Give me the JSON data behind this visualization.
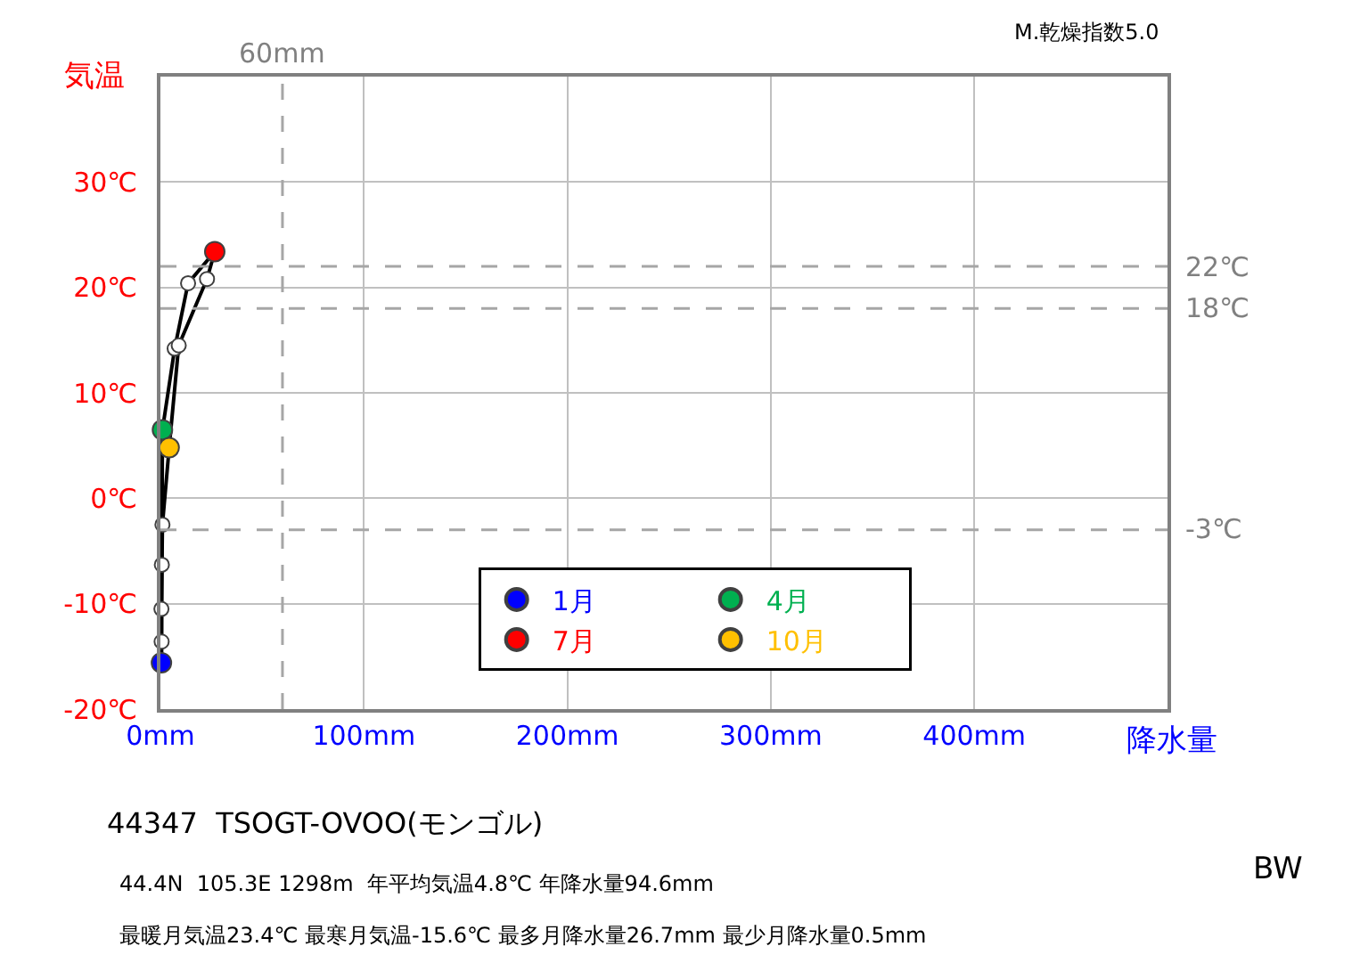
{
  "chart_data": {
    "type": "line",
    "title": "44347  TSOGT-OVOO(モンゴル)",
    "xlabel": "降水量",
    "ylabel": "気温",
    "xlim": [
      0,
      495
    ],
    "xticks": [
      {
        "value": 0,
        "label": "0mm"
      },
      {
        "value": 100,
        "label": "100mm"
      },
      {
        "value": 200,
        "label": "200mm"
      },
      {
        "value": 300,
        "label": "300mm"
      },
      {
        "value": 400,
        "label": "400mm"
      }
    ],
    "ylim": [
      -20,
      40
    ],
    "yticks": [
      {
        "value": -20,
        "label": "-20℃"
      },
      {
        "value": -10,
        "label": "-10℃"
      },
      {
        "value": 0,
        "label": "0℃"
      },
      {
        "value": 10,
        "label": "10℃"
      },
      {
        "value": 20,
        "label": "20℃"
      },
      {
        "value": 30,
        "label": "30℃"
      }
    ],
    "grid": true,
    "legend": "bottom right",
    "series": [
      {
        "type": "line",
        "color": "#000000",
        "marker": "none",
        "x": [
          0.5,
          0.6,
          0.7,
          1.0,
          7.0,
          13.6,
          26.7
        ],
        "values": [
          -15.6,
          -13.6,
          -6.3,
          6.5,
          14.2,
          20.4,
          23.4
        ]
      },
      {
        "color": "#000000",
        "marker": "none",
        "x": [
          26.7,
          22.9,
          9.0,
          4.3,
          1.0,
          0.5,
          0.5
        ],
        "values": [
          23.4,
          20.8,
          14.5,
          4.8,
          -2.5,
          -10.5,
          -15.6
        ]
      },
      {
        "type": "scatter",
        "color": "#ffffff",
        "marker": "circle",
        "x": [
          0.6,
          0.7,
          7.0,
          13.6,
          22.9,
          9.0,
          1.0,
          0.5
        ],
        "values": [
          -13.6,
          -6.3,
          14.2,
          20.4,
          20.8,
          14.5,
          -2.5,
          -10.5
        ]
      },
      {
        "type": "scatter",
        "name": "1月",
        "color": "#0000ff",
        "marker": "circle",
        "x": [
          0.5
        ],
        "values": [
          -15.6
        ]
      },
      {
        "type": "scatter",
        "name": "4月",
        "color": "#00b050",
        "marker": "circle",
        "x": [
          1.0
        ],
        "values": [
          6.5
        ]
      },
      {
        "type": "scatter",
        "name": "7月",
        "color": "#ff0000",
        "marker": "circle",
        "x": [
          26.7
        ],
        "values": [
          23.4
        ]
      },
      {
        "type": "scatter",
        "name": "10月",
        "color": "#ffc000",
        "marker": "circle",
        "x": [
          4.3
        ],
        "values": [
          4.8
        ]
      }
    ],
    "ref_lines": [
      {
        "axis": "x",
        "value": 60,
        "label": "60mm",
        "color": "#a6a6a6",
        "line_style": "dashed"
      },
      {
        "axis": "y",
        "value": 22,
        "label": "22℃",
        "color": "#a6a6a6",
        "line_style": "dashed"
      },
      {
        "axis": "y",
        "value": 18,
        "label": "18℃",
        "color": "#a6a6a6",
        "line_style": "dashed"
      },
      {
        "axis": "y",
        "value": -3,
        "label": "-3℃",
        "color": "#a6a6a6",
        "line_style": "dashed"
      }
    ],
    "annotations": [
      "M.乾燥指数5.0",
      "BW",
      "44.4N  105.3E 1298m  年平均気温4.8℃ 年降水量94.6mm",
      "最暖月気温23.4℃ 最寒月気温-15.6℃ 最多月降水量26.7mm 最少月降水量0.5mm"
    ]
  }
}
